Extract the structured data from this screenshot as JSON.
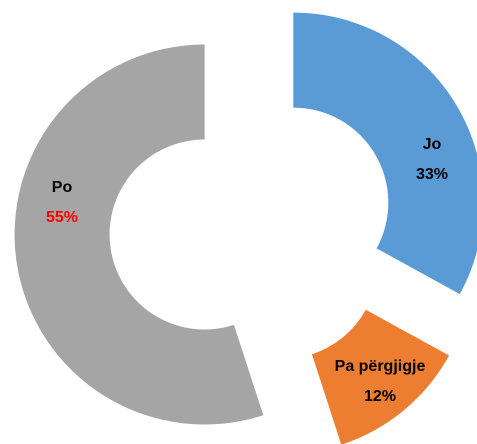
{
  "chart_data": {
    "type": "donut",
    "categories": [
      "Jo",
      "Pa përgjigje",
      "Po"
    ],
    "values": [
      33,
      12,
      55
    ],
    "value_labels": [
      "33%",
      "12%",
      "55%"
    ],
    "colors": [
      "#5b9bd5",
      "#ed7d31",
      "#a5a5a5"
    ],
    "label_colors": [
      "#000000",
      "#000000",
      "#ff0000"
    ]
  }
}
